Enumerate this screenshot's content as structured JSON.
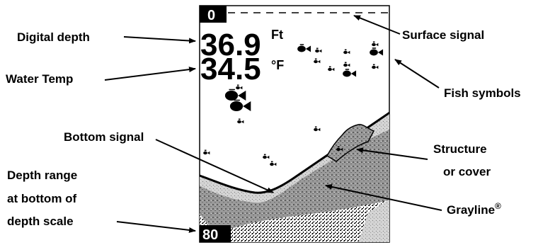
{
  "screen": {
    "scale_top": "0",
    "scale_bottom": "80",
    "depth_value": "36.9",
    "depth_unit": "Ft",
    "temp_value": "34.5",
    "temp_unit": "°F"
  },
  "callouts": {
    "digital_depth": "Digital depth",
    "water_temp": "Water Temp",
    "bottom_signal": "Bottom signal",
    "depth_range_1": "Depth range",
    "depth_range_2": "at bottom of",
    "depth_range_3": "depth scale",
    "surface_signal": "Surface signal",
    "fish_symbols": "Fish symbols",
    "structure_1": "Structure",
    "structure_2": "or cover",
    "grayline": "Grayline",
    "grayline_mark": "®"
  },
  "colors": {
    "ink": "#000000",
    "gray_band": "#8c8c8c",
    "light_band": "#c8c8c8",
    "background": "#ffffff"
  }
}
